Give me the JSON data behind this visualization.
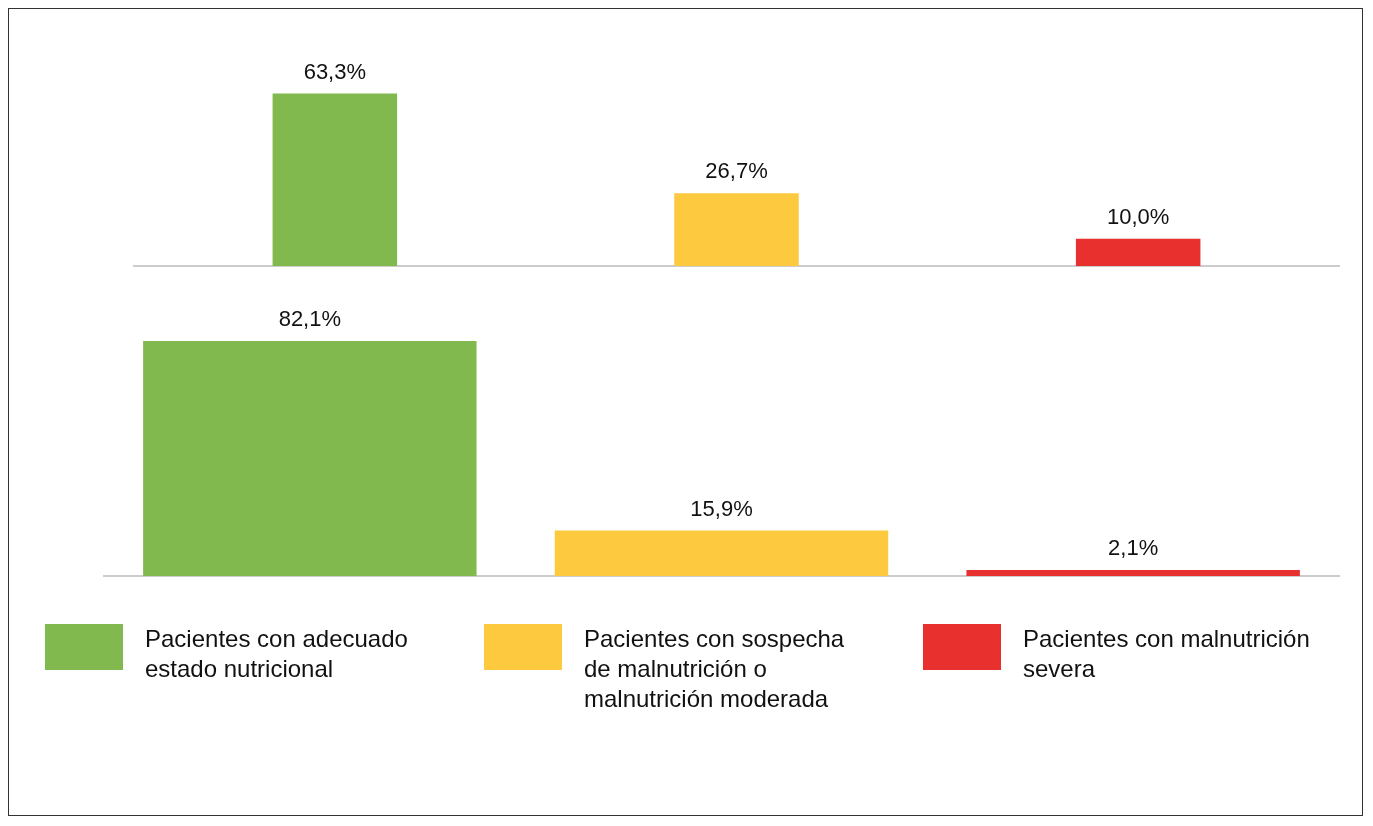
{
  "chart_data": [
    {
      "type": "bar",
      "categories": [
        null,
        null,
        null
      ],
      "values": [
        63.3,
        26.7,
        10.0
      ],
      "colors": [
        "#82b94f",
        "#fcc93f",
        "#e8302f"
      ],
      "value_labels": [
        "63,3%",
        "26,7%",
        "10,0%"
      ]
    },
    {
      "type": "bar",
      "categories": [
        null,
        null,
        null
      ],
      "legend": "bottom",
      "series": [
        {
          "name": "Pacientes con adecuado estado nutricional",
          "color": "#82b94f",
          "values": [
            82.1,
            null,
            null
          ],
          "value_labels": [
            "82,1%",
            null,
            null
          ]
        },
        {
          "name": "Pacientes con sospecha de malnutrición o malnutrición moderada",
          "color": "#fcc93f",
          "values": [
            null,
            15.9,
            null
          ],
          "value_labels": [
            null,
            "15,9%",
            null
          ]
        },
        {
          "name": "Pacientes con malnutrición severa",
          "color": "#e8302f",
          "values": [
            null,
            null,
            2.1
          ],
          "value_labels": [
            null,
            null,
            "2,1%"
          ]
        }
      ]
    }
  ]
}
